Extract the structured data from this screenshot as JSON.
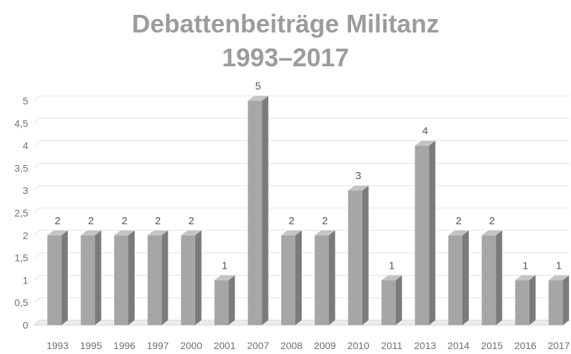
{
  "chart_data": {
    "type": "bar",
    "title": "Debattenbeiträge Militanz",
    "subtitle": "1993–2017",
    "categories": [
      "1993",
      "1995",
      "1996",
      "1997",
      "2000",
      "2001",
      "2007",
      "2008",
      "2009",
      "2010",
      "2011",
      "2013",
      "2014",
      "2015",
      "2016",
      "2017"
    ],
    "values": [
      2,
      2,
      2,
      2,
      2,
      1,
      5,
      2,
      2,
      3,
      1,
      4,
      2,
      2,
      1,
      1
    ],
    "data_labels": [
      "2",
      "2",
      "2",
      "2",
      "2",
      "1",
      "5",
      "2",
      "2",
      "3",
      "1",
      "4",
      "2",
      "2",
      "1",
      "1"
    ],
    "ylim": [
      0,
      5
    ],
    "yticks": [
      0,
      0.5,
      1,
      1.5,
      2,
      2.5,
      3,
      3.5,
      4,
      4.5,
      5
    ],
    "ytick_labels": [
      "0",
      "0,5",
      "1",
      "1,5",
      "2",
      "2,5",
      "3",
      "3,5",
      "4",
      "4,5",
      "5"
    ],
    "xlabel": "",
    "ylabel": "",
    "grid": true,
    "legend": "none",
    "style": "3d-column",
    "colors": {
      "bar_front": "#a6a6a6",
      "bar_side": "#7b7b7b",
      "bar_top": "#c4c4c4",
      "grid": "#e3e3e3",
      "floor": "#d4d4d4",
      "title": "#9c9c9c"
    }
  }
}
